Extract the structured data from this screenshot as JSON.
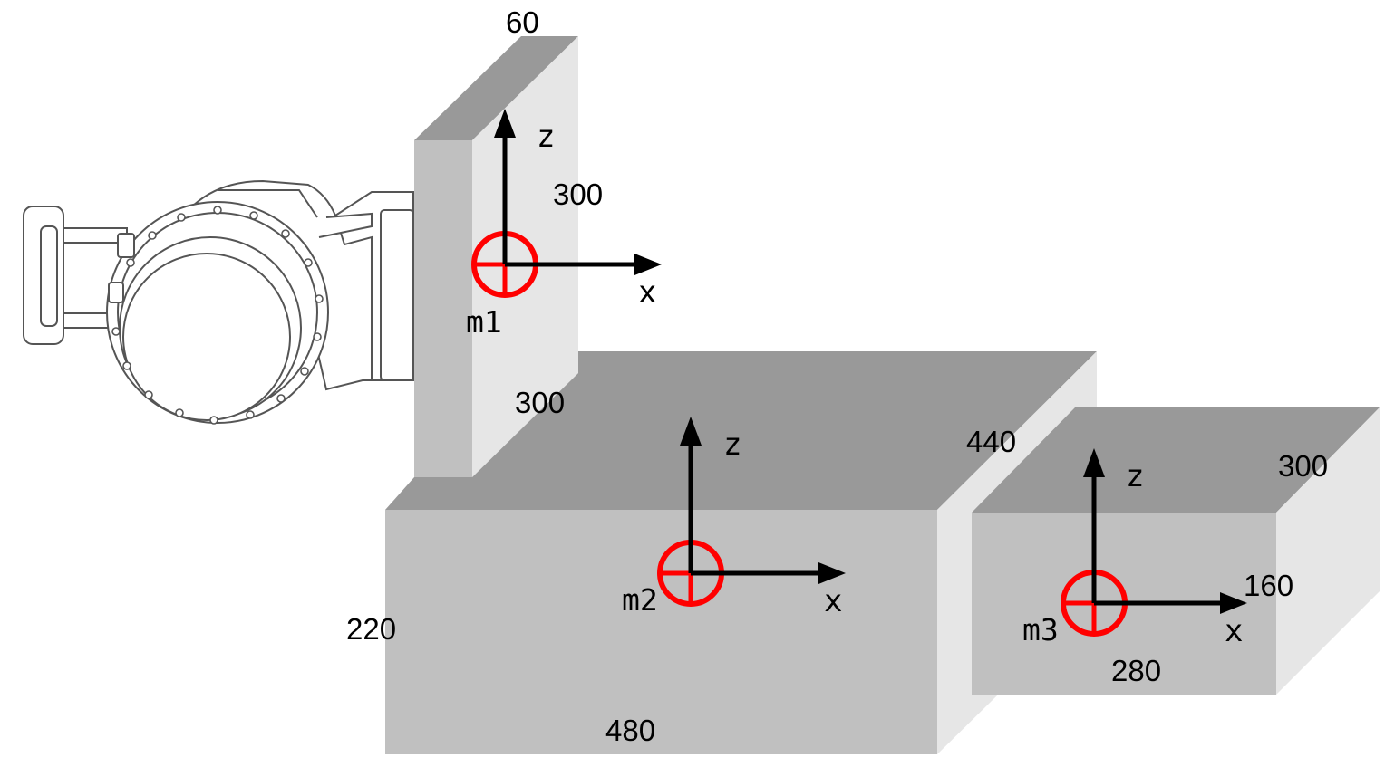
{
  "colors": {
    "face_light": "#e6e6e6",
    "face_mid": "#c0c0c0",
    "face_top": "#999999",
    "com_marker": "#ff0000",
    "axis": "#000000",
    "robot_outline": "#555555"
  },
  "robot": {
    "icon": "robot-wrist-flange-icon"
  },
  "blocks": [
    {
      "id": "plate",
      "mass_label": "m1",
      "dims": {
        "thickness": "60",
        "height": "300",
        "depth": "300"
      },
      "axes": {
        "z": "z",
        "x": "x"
      }
    },
    {
      "id": "main-box",
      "mass_label": "m2",
      "dims": {
        "height": "220",
        "width": "480",
        "depth": "440"
      },
      "axes": {
        "z": "z",
        "x": "x"
      }
    },
    {
      "id": "side-box",
      "mass_label": "m3",
      "dims": {
        "depth": "300",
        "height": "160",
        "width": "280"
      },
      "axes": {
        "z": "z",
        "x": "x"
      }
    }
  ]
}
